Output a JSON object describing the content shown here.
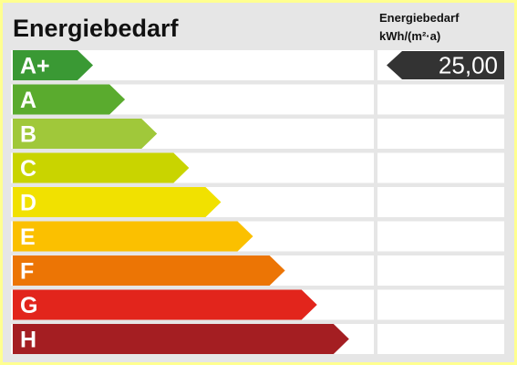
{
  "title": "Energiebedarf",
  "value_header": [
    "Energiebedarf",
    "kWh/(m²·a)"
  ],
  "classes": [
    {
      "label": "A+",
      "color": "#3a9934",
      "value": "25,00"
    },
    {
      "label": "A",
      "color": "#5aab2e"
    },
    {
      "label": "B",
      "color": "#a0c83a"
    },
    {
      "label": "C",
      "color": "#c9d400"
    },
    {
      "label": "D",
      "color": "#f1e100"
    },
    {
      "label": "E",
      "color": "#fbc000"
    },
    {
      "label": "F",
      "color": "#ec7505"
    },
    {
      "label": "G",
      "color": "#e2251c"
    },
    {
      "label": "H",
      "color": "#a41e22"
    }
  ]
}
